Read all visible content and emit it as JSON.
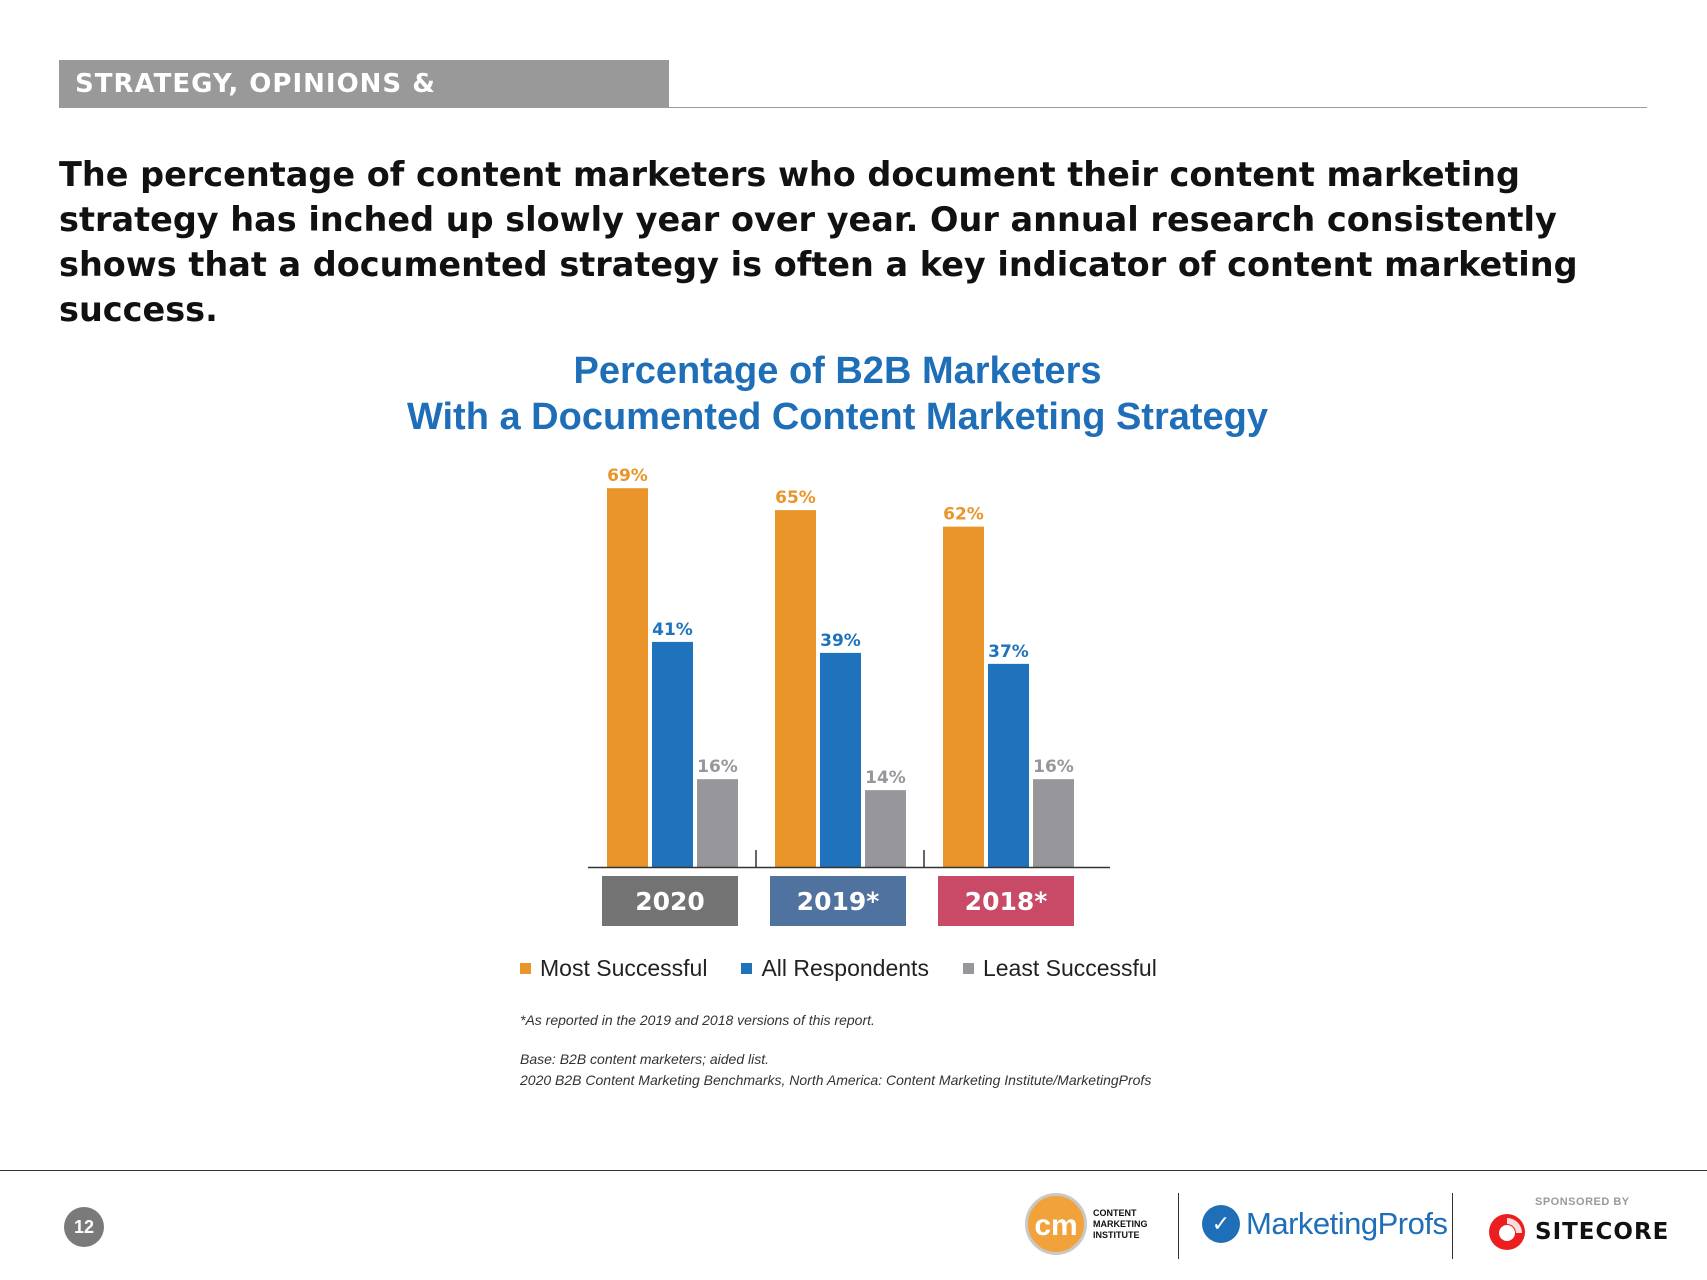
{
  "header": {
    "section_label": "STRATEGY, OPINIONS & TECHNOLOGY",
    "headline": "The percentage of content marketers who document their content marketing strategy has inched up slowly year over year. Our annual research consistently shows that a documented strategy is often a key indicator of content marketing success."
  },
  "colors": {
    "most_successful": "#e9952a",
    "all_respondents": "#1f73bc",
    "least_successful": "#97979b",
    "year_2020": "#737373",
    "year_2019": "#4f729e",
    "year_2018": "#c84a67",
    "title_blue": "#1f6eb8"
  },
  "chart_data": {
    "type": "bar",
    "title": "Percentage of B2B Marketers With a Documented Content Marketing Strategy",
    "title_lines": [
      "Percentage of B2B Marketers",
      "With a Documented Content Marketing Strategy"
    ],
    "categories": [
      "2020",
      "2019*",
      "2018*"
    ],
    "series": [
      {
        "name": "Most Successful",
        "values": [
          69,
          65,
          62
        ],
        "labels": [
          "69%",
          "65%",
          "62%"
        ]
      },
      {
        "name": "All Respondents",
        "values": [
          41,
          39,
          37
        ],
        "labels": [
          "41%",
          "39%",
          "37%"
        ]
      },
      {
        "name": "Least Successful",
        "values": [
          16,
          14,
          16
        ],
        "labels": [
          "16%",
          "14%",
          "16%"
        ]
      }
    ],
    "ylim": [
      0,
      75
    ],
    "grid": false,
    "legend_position": "bottom"
  },
  "notes": {
    "footnote": "*As reported in the 2019 and 2018 versions of this report.",
    "base": "Base: B2B content marketers; aided list.",
    "source": "2020 B2B Content Marketing Benchmarks, North America: Content Marketing Institute/MarketingProfs"
  },
  "footer": {
    "page_number": "12",
    "cmi_mark": "cm",
    "cmi_name_lines": [
      "CONTENT",
      "MARKETING",
      "INSTITUTE"
    ],
    "mp_name": "MarketingProfs",
    "sponsor_label": "SPONSORED BY",
    "sponsor_name": "SITECORE"
  }
}
